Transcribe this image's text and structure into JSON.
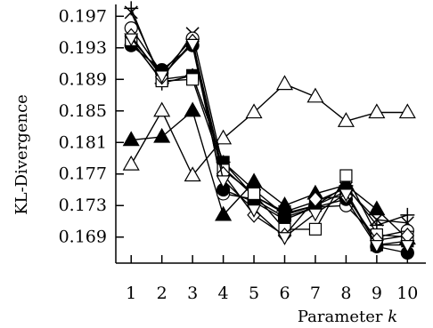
{
  "chart_data": {
    "type": "line",
    "xlabel": "Parameter k",
    "xlabel_text": "Parameter ",
    "xlabel_var": "k",
    "ylabel": "KL-Divergence",
    "x": [
      1,
      2,
      3,
      4,
      5,
      6,
      7,
      8,
      9,
      10
    ],
    "xticks": [
      "1",
      "2",
      "3",
      "4",
      "5",
      "6",
      "7",
      "8",
      "9",
      "10"
    ],
    "yticks": [
      0.169,
      0.173,
      0.177,
      0.181,
      0.185,
      0.189,
      0.193,
      0.197
    ],
    "ytick_labels": [
      "0.169",
      "0.173",
      "0.177",
      "0.181",
      "0.185",
      "0.189",
      "0.193",
      "0.197"
    ],
    "ylim": [
      0.1657,
      0.1985
    ],
    "xlim": [
      0.5,
      10.6
    ],
    "grid": false,
    "legend": "none",
    "series": [
      {
        "marker": "triangle-open",
        "values": [
          0.1782,
          0.185,
          0.1768,
          0.1815,
          0.1848,
          0.1884,
          0.1868,
          0.1837,
          0.1848,
          0.1848
        ]
      },
      {
        "marker": "triangle-filled",
        "values": [
          0.1813,
          0.1817,
          0.185,
          0.1718,
          0.176,
          0.173,
          0.1745,
          0.1756,
          0.1725,
          0.1688
        ]
      },
      {
        "marker": "plus",
        "values": [
          0.198,
          0.1885,
          0.1895,
          0.1785,
          0.175,
          0.1718,
          0.173,
          0.1755,
          0.1705,
          0.1718
        ]
      },
      {
        "marker": "cross",
        "values": [
          0.1975,
          0.189,
          0.1948,
          0.1778,
          0.1742,
          0.1722,
          0.1735,
          0.1752,
          0.1712,
          0.1708
        ]
      },
      {
        "marker": "circle-open",
        "values": [
          0.1955,
          0.1898,
          0.1942,
          0.1745,
          0.1738,
          0.1715,
          0.1728,
          0.173,
          0.169,
          0.1698
        ]
      },
      {
        "marker": "circle-filled",
        "values": [
          0.1933,
          0.1902,
          0.1933,
          0.175,
          0.1735,
          0.1712,
          0.1728,
          0.1738,
          0.1678,
          0.167
        ]
      },
      {
        "marker": "square-filled",
        "values": [
          0.1938,
          0.189,
          0.1895,
          0.1785,
          0.1742,
          0.172,
          0.173,
          0.1748,
          0.168,
          0.1685
        ]
      },
      {
        "marker": "square-open",
        "values": [
          0.194,
          0.1888,
          0.189,
          0.1775,
          0.1745,
          0.17,
          0.17,
          0.1768,
          0.1693,
          0.169
        ]
      },
      {
        "marker": "diamond-open",
        "values": [
          0.1945,
          0.1893,
          0.1938,
          0.177,
          0.1718,
          0.1692,
          0.1738,
          0.1742,
          0.1686,
          0.1692
        ]
      },
      {
        "marker": "triangle-down-open",
        "values": [
          0.1942,
          0.1895,
          0.1935,
          0.1762,
          0.1725,
          0.169,
          0.172,
          0.1745,
          0.168,
          0.168
        ]
      }
    ]
  }
}
